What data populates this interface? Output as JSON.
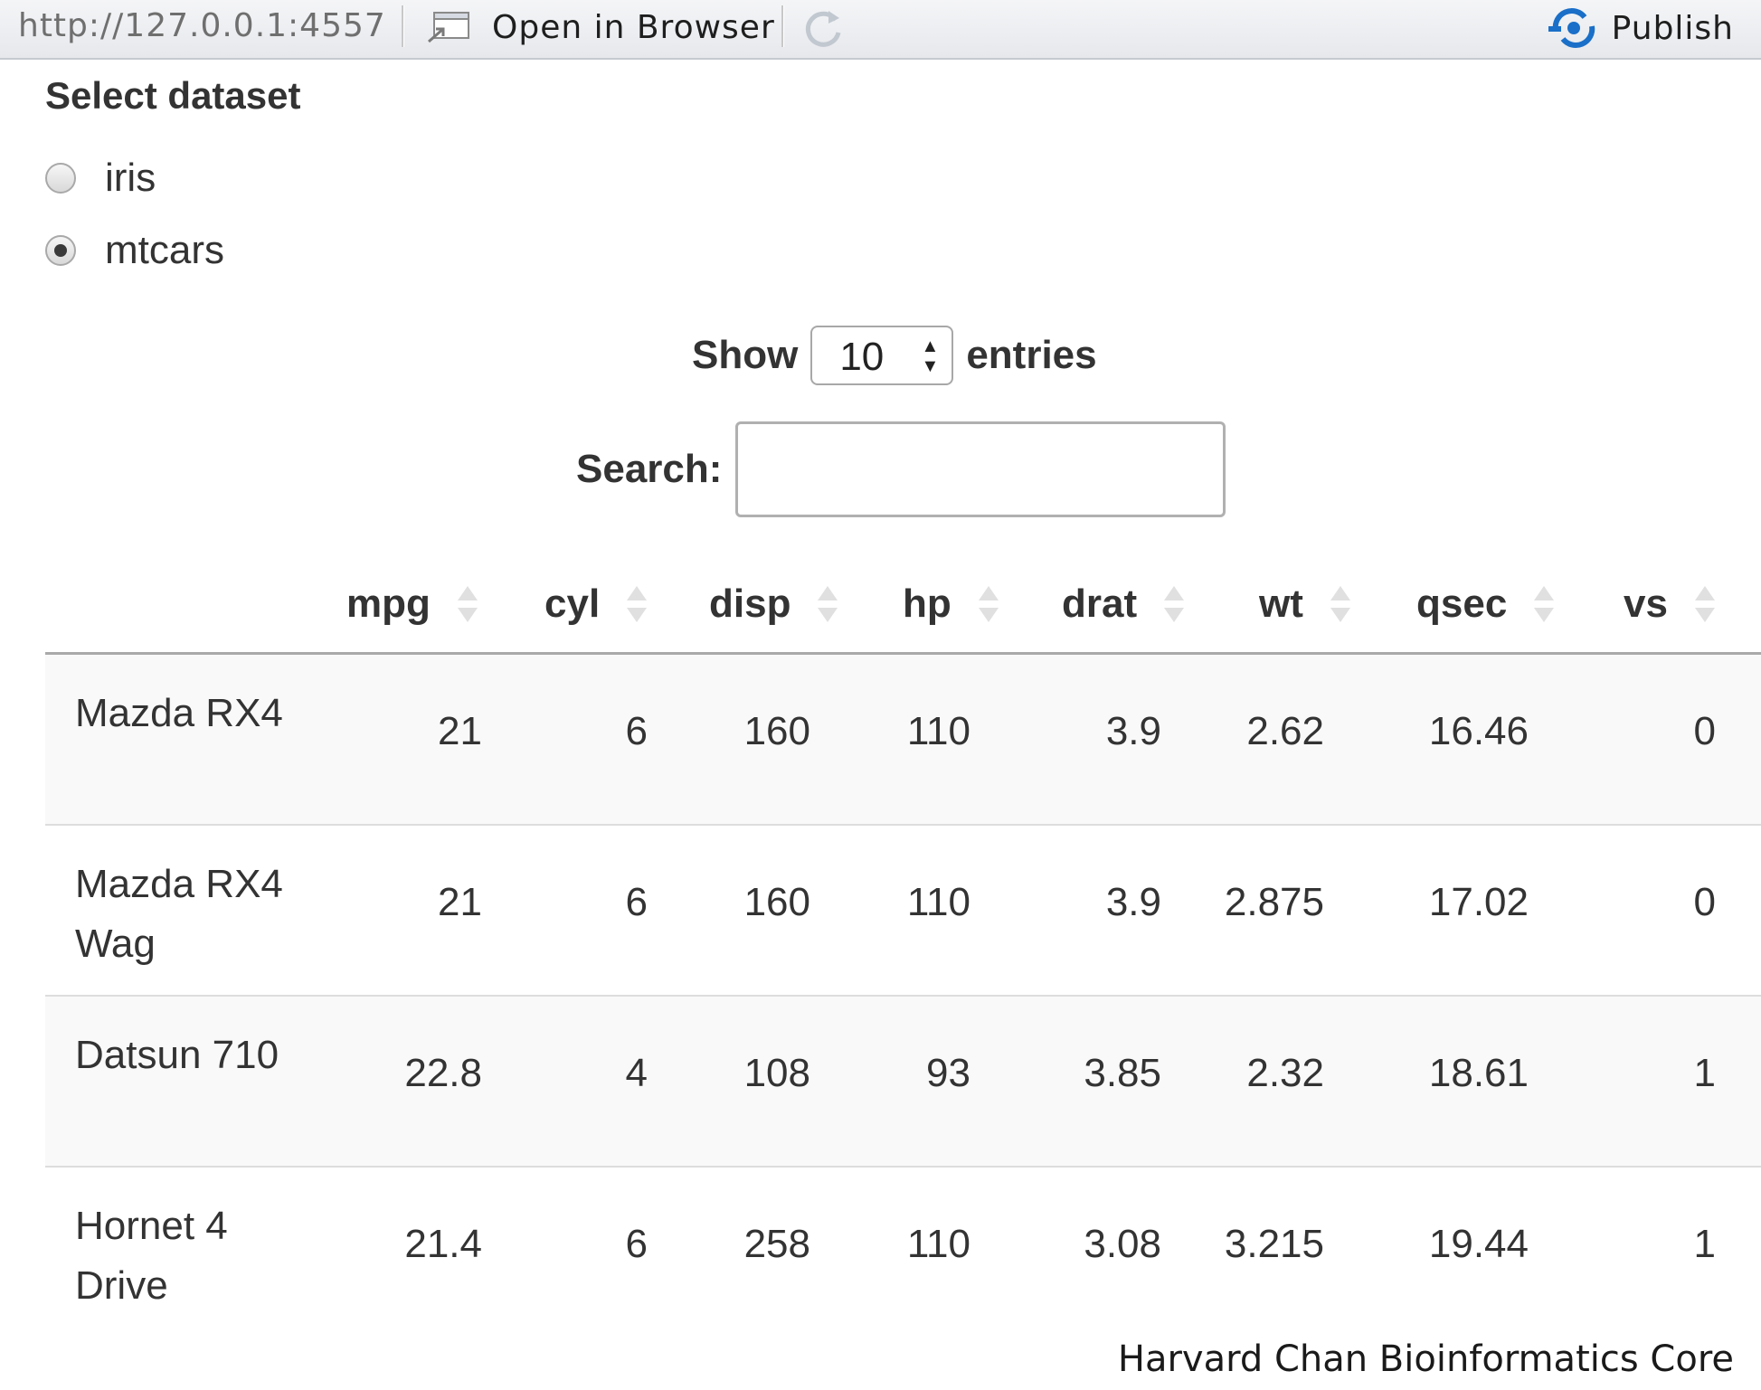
{
  "toolbar": {
    "url": "http://127.0.0.1:4557",
    "open_in_browser_label": "Open in Browser",
    "publish_label": "Publish",
    "publish_color": "#1a6fc8"
  },
  "dataset_selector": {
    "title": "Select dataset",
    "options": [
      {
        "label": "iris",
        "checked": false
      },
      {
        "label": "mtcars",
        "checked": true
      }
    ]
  },
  "table_controls": {
    "show_label": "Show",
    "length_value": "10",
    "entries_label": "entries",
    "search_label": "Search:",
    "search_value": ""
  },
  "table": {
    "columns": [
      "mpg",
      "cyl",
      "disp",
      "hp",
      "drat",
      "wt",
      "qsec",
      "vs"
    ],
    "rows": [
      {
        "name": "Mazda RX4",
        "values": [
          "21",
          "6",
          "160",
          "110",
          "3.9",
          "2.62",
          "16.46",
          "0"
        ]
      },
      {
        "name": "Mazda RX4 Wag",
        "values": [
          "21",
          "6",
          "160",
          "110",
          "3.9",
          "2.875",
          "17.02",
          "0"
        ]
      },
      {
        "name": "Datsun 710",
        "values": [
          "22.8",
          "4",
          "108",
          "93",
          "3.85",
          "2.32",
          "18.61",
          "1"
        ]
      },
      {
        "name": "Hornet 4 Drive",
        "values": [
          "21.4",
          "6",
          "258",
          "110",
          "3.08",
          "3.215",
          "19.44",
          "1"
        ]
      }
    ]
  },
  "footer": {
    "credit": "Harvard Chan Bioinformatics Core"
  }
}
